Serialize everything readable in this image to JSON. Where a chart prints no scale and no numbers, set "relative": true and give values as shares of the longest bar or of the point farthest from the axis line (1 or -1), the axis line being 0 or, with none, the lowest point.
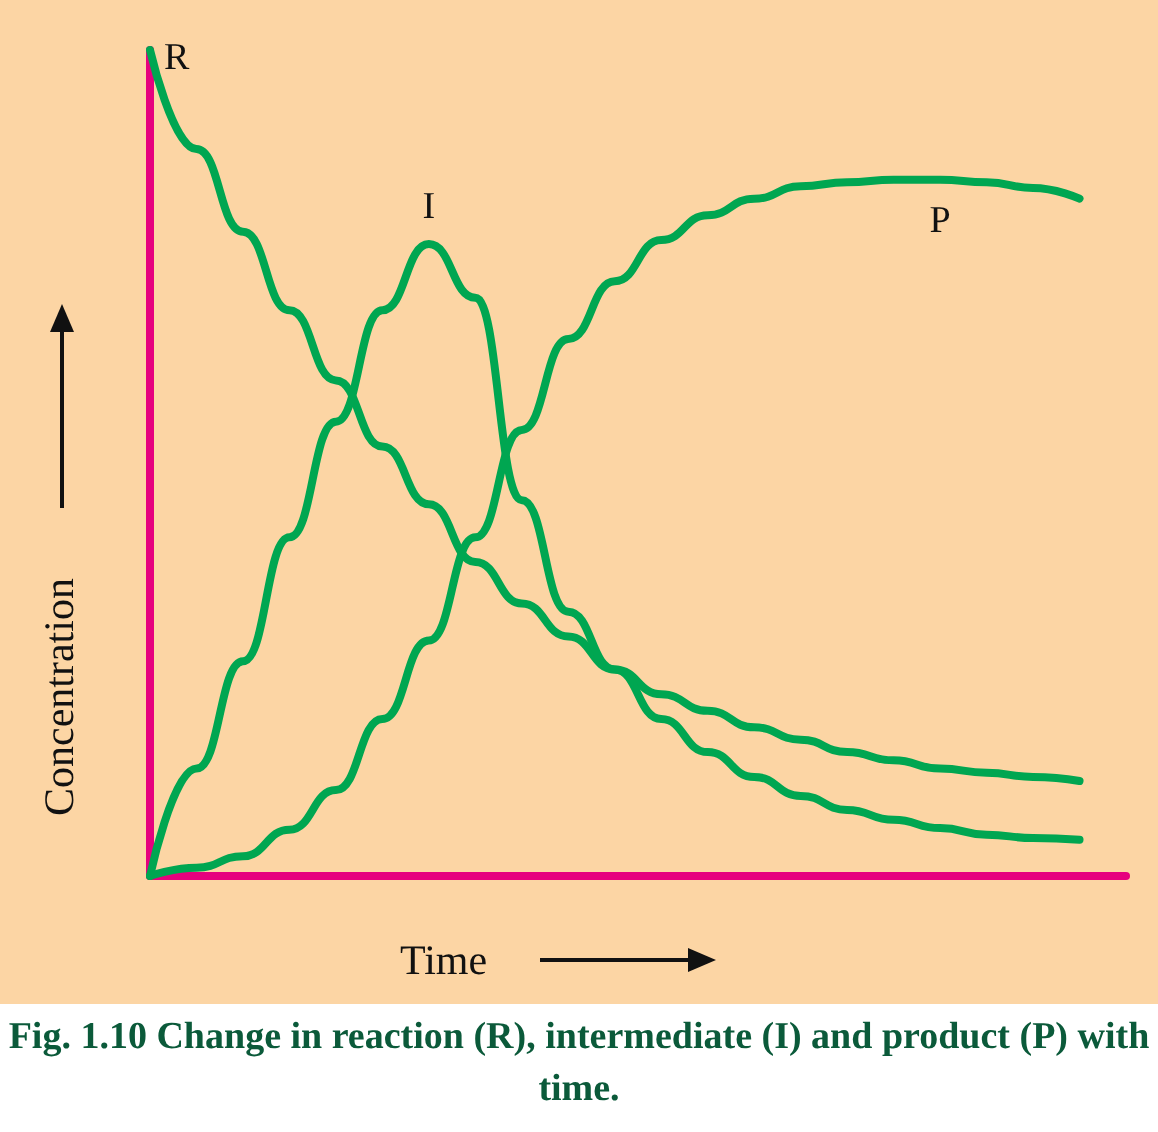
{
  "chart_data": {
    "type": "line",
    "title": "Fig. 1.10 Change in reaction (R), intermediate (I) and product (P) with time.",
    "xlabel": "Time",
    "ylabel": "Concentration",
    "relative": true,
    "grid": false,
    "legend": false,
    "marker": "none",
    "line_style": "solid",
    "categories": [
      null,
      null,
      null,
      null,
      null,
      null,
      null,
      null,
      null,
      null,
      null,
      null,
      null,
      null,
      null,
      null,
      null,
      null,
      null,
      null,
      null,
      null
    ],
    "series": [
      {
        "name": "R",
        "color": "#00a651",
        "values": [
          1,
          0.88,
          0.78,
          0.685,
          0.6,
          0.52,
          0.45,
          0.38,
          0.33,
          0.29,
          0.25,
          0.22,
          0.2,
          0.18,
          0.165,
          0.15,
          0.14,
          0.13,
          0.125,
          0.12,
          0.115,
          null
        ]
      },
      {
        "name": "I",
        "color": "#00a651",
        "values": [
          0,
          0.13,
          0.26,
          0.41,
          0.55,
          0.685,
          0.765,
          0.7,
          0.455,
          0.32,
          0.25,
          0.19,
          0.15,
          0.12,
          0.097,
          0.08,
          0.068,
          0.058,
          0.05,
          0.046,
          0.044,
          null
        ]
      },
      {
        "name": "P",
        "color": "#00a651",
        "values": [
          0,
          0.01,
          0.024,
          0.056,
          0.104,
          0.19,
          0.285,
          0.41,
          0.54,
          0.65,
          0.72,
          0.77,
          0.8,
          0.82,
          0.835,
          0.84,
          0.843,
          0.843,
          0.84,
          0.833,
          0.82,
          null
        ]
      }
    ]
  }
}
